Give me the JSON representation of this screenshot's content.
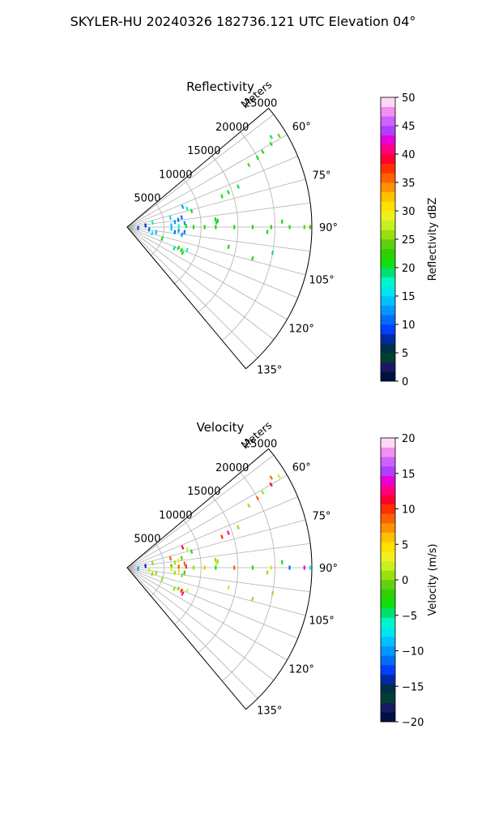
{
  "title": "SKYLER-HU  20240326  182736.121 UTC Elevation 04°",
  "chart_data": [
    {
      "type": "scatter",
      "projection": "polar-sector",
      "title": "Reflectivity",
      "radial_label": "Meters",
      "radial_ticks": [
        5000,
        10000,
        15000,
        20000,
        25000
      ],
      "radial_tick_labels": [
        "5000",
        "10000",
        "15000",
        "20000",
        "25000"
      ],
      "radial_range": [
        0,
        25000
      ],
      "azimuth_range": [
        50,
        140
      ],
      "azimuth_ticks": [
        60,
        75,
        90,
        105,
        120,
        135
      ],
      "azimuth_tick_labels": [
        "60°",
        "75°",
        "90°",
        "105°",
        "120°",
        "135°"
      ],
      "grid": true,
      "colorbar": {
        "label": "Reflectivity dBZ",
        "range": [
          0,
          50
        ],
        "ticks": [
          0,
          5,
          10,
          15,
          20,
          25,
          30,
          35,
          40,
          45,
          50
        ],
        "tick_labels": [
          "0",
          "5",
          "10",
          "15",
          "20",
          "25",
          "30",
          "35",
          "40",
          "45",
          "50"
        ],
        "colors": [
          "#001040",
          "#1a1a60",
          "#004030",
          "#00304a",
          "#002aa8",
          "#0040ff",
          "#006ef5",
          "#0098ff",
          "#00c0ff",
          "#00e5f0",
          "#00f5c8",
          "#00e070",
          "#10e010",
          "#30d000",
          "#60d010",
          "#98e010",
          "#c8f020",
          "#f0f020",
          "#ffe000",
          "#ffc000",
          "#ff9000",
          "#ff6000",
          "#ff3000",
          "#ff0030",
          "#ff0080",
          "#e800d8",
          "#b040ff",
          "#d060ff",
          "#f090f0",
          "#ffd8f8"
        ]
      },
      "points": [
        {
          "az": 90,
          "r": 9000,
          "v": 22
        },
        {
          "az": 90,
          "r": 10500,
          "v": 22
        },
        {
          "az": 90,
          "r": 12000,
          "v": 22
        },
        {
          "az": 90,
          "r": 14500,
          "v": 21
        },
        {
          "az": 90,
          "r": 17000,
          "v": 22
        },
        {
          "az": 90,
          "r": 19500,
          "v": 23
        },
        {
          "az": 90,
          "r": 22000,
          "v": 21
        },
        {
          "az": 90,
          "r": 24000,
          "v": 24
        },
        {
          "az": 90,
          "r": 24800,
          "v": 22
        },
        {
          "az": 89,
          "r": 8000,
          "v": 20
        },
        {
          "az": 89,
          "r": 7000,
          "v": 18
        },
        {
          "az": 88,
          "r": 6000,
          "v": 14
        },
        {
          "az": 84,
          "r": 6500,
          "v": 12
        },
        {
          "az": 82,
          "r": 7000,
          "v": 10
        },
        {
          "az": 80,
          "r": 7500,
          "v": 11
        },
        {
          "az": 86,
          "r": 7800,
          "v": 13
        },
        {
          "az": 94,
          "r": 7000,
          "v": 12
        },
        {
          "az": 96,
          "r": 6500,
          "v": 10
        },
        {
          "az": 98,
          "r": 7500,
          "v": 13
        },
        {
          "az": 95,
          "r": 7800,
          "v": 11
        },
        {
          "az": 92,
          "r": 6000,
          "v": 14
        },
        {
          "az": 85,
          "r": 12000,
          "v": 21
        },
        {
          "az": 86,
          "r": 12300,
          "v": 22
        },
        {
          "az": 87,
          "r": 12100,
          "v": 19
        },
        {
          "az": 72,
          "r": 13500,
          "v": 20
        },
        {
          "az": 71,
          "r": 14500,
          "v": 21
        },
        {
          "az": 70,
          "r": 16000,
          "v": 19
        },
        {
          "az": 63,
          "r": 18500,
          "v": 24
        },
        {
          "az": 62,
          "r": 20000,
          "v": 20
        },
        {
          "az": 61,
          "r": 21000,
          "v": 22
        },
        {
          "az": 60,
          "r": 22500,
          "v": 21
        },
        {
          "az": 59,
          "r": 24000,
          "v": 24
        },
        {
          "az": 58,
          "r": 23000,
          "v": 19
        },
        {
          "az": 70,
          "r": 8000,
          "v": 13
        },
        {
          "az": 73,
          "r": 8500,
          "v": 18
        },
        {
          "az": 76,
          "r": 9000,
          "v": 21
        },
        {
          "az": 78,
          "r": 6000,
          "v": 15
        },
        {
          "az": 112,
          "r": 7500,
          "v": 20
        },
        {
          "az": 113,
          "r": 8000,
          "v": 21
        },
        {
          "az": 114,
          "r": 7000,
          "v": 19
        },
        {
          "az": 115,
          "r": 8300,
          "v": 20
        },
        {
          "az": 111,
          "r": 8700,
          "v": 18
        },
        {
          "az": 100,
          "r": 4000,
          "v": 14
        },
        {
          "az": 104,
          "r": 3500,
          "v": 16
        },
        {
          "az": 96,
          "r": 3000,
          "v": 11
        },
        {
          "az": 108,
          "r": 5000,
          "v": 20
        },
        {
          "az": 100,
          "r": 20000,
          "v": 19
        },
        {
          "az": 104,
          "r": 17500,
          "v": 21
        },
        {
          "az": 101,
          "r": 14000,
          "v": 22
        },
        {
          "az": 92,
          "r": 19000,
          "v": 21
        },
        {
          "az": 88,
          "r": 21000,
          "v": 20
        },
        {
          "az": 85,
          "r": 2500,
          "v": 8
        },
        {
          "az": 80,
          "r": 3500,
          "v": 17
        },
        {
          "az": 95,
          "r": 1500,
          "v": 9
        }
      ]
    },
    {
      "type": "scatter",
      "projection": "polar-sector",
      "title": "Velocity",
      "radial_label": "Meters",
      "radial_ticks": [
        5000,
        10000,
        15000,
        20000,
        25000
      ],
      "radial_tick_labels": [
        "5000",
        "10000",
        "15000",
        "20000",
        "25000"
      ],
      "radial_range": [
        0,
        25000
      ],
      "azimuth_range": [
        50,
        140
      ],
      "azimuth_ticks": [
        60,
        75,
        90,
        105,
        120,
        135
      ],
      "azimuth_tick_labels": [
        "60°",
        "75°",
        "90°",
        "105°",
        "120°",
        "135°"
      ],
      "grid": true,
      "colorbar": {
        "label": "Velocity (m/s)",
        "range": [
          -20,
          20
        ],
        "ticks": [
          -20,
          -15,
          -10,
          -5,
          0,
          5,
          10,
          15,
          20
        ],
        "tick_labels": [
          "−20",
          "−15",
          "−10",
          "−5",
          "0",
          "5",
          "10",
          "15",
          "20"
        ],
        "colors": [
          "#001040",
          "#1a1a60",
          "#004030",
          "#00304a",
          "#002aa8",
          "#0040ff",
          "#006ef5",
          "#0098ff",
          "#00c0ff",
          "#00e5f0",
          "#00f5c8",
          "#00e070",
          "#10e010",
          "#30d000",
          "#60d010",
          "#98e010",
          "#c8f020",
          "#f0f020",
          "#ffe000",
          "#ffc000",
          "#ff9000",
          "#ff6000",
          "#ff3000",
          "#ff0030",
          "#ff0080",
          "#e800d8",
          "#b040ff",
          "#d060ff",
          "#f090f0",
          "#ffd8f8"
        ]
      },
      "points": [
        {
          "az": 90,
          "r": 9000,
          "v": 0
        },
        {
          "az": 90,
          "r": 10500,
          "v": 6
        },
        {
          "az": 90,
          "r": 12000,
          "v": -4
        },
        {
          "az": 90,
          "r": 14500,
          "v": 8
        },
        {
          "az": 90,
          "r": 17000,
          "v": -3
        },
        {
          "az": 90,
          "r": 19500,
          "v": 2
        },
        {
          "az": 90,
          "r": 22000,
          "v": -12
        },
        {
          "az": 90,
          "r": 24000,
          "v": 14
        },
        {
          "az": 90,
          "r": 24800,
          "v": -6
        },
        {
          "az": 89,
          "r": 8000,
          "v": 10
        },
        {
          "az": 89,
          "r": 7000,
          "v": 8
        },
        {
          "az": 88,
          "r": 6000,
          "v": -2
        },
        {
          "az": 84,
          "r": 6500,
          "v": 1
        },
        {
          "az": 82,
          "r": 7000,
          "v": 3
        },
        {
          "az": 80,
          "r": 7500,
          "v": -1
        },
        {
          "az": 86,
          "r": 7800,
          "v": 9
        },
        {
          "az": 94,
          "r": 7000,
          "v": 2
        },
        {
          "az": 96,
          "r": 6500,
          "v": 0
        },
        {
          "az": 98,
          "r": 7500,
          "v": 1
        },
        {
          "az": 95,
          "r": 7800,
          "v": -2
        },
        {
          "az": 92,
          "r": 6000,
          "v": 4
        },
        {
          "az": 85,
          "r": 12000,
          "v": 1
        },
        {
          "az": 86,
          "r": 12300,
          "v": 0
        },
        {
          "az": 87,
          "r": 12100,
          "v": 2
        },
        {
          "az": 72,
          "r": 13500,
          "v": 10
        },
        {
          "az": 71,
          "r": 14500,
          "v": 12
        },
        {
          "az": 70,
          "r": 16000,
          "v": 1
        },
        {
          "az": 63,
          "r": 18500,
          "v": 0
        },
        {
          "az": 62,
          "r": 20000,
          "v": 9
        },
        {
          "az": 61,
          "r": 21000,
          "v": 1
        },
        {
          "az": 60,
          "r": 22500,
          "v": 11
        },
        {
          "az": 59,
          "r": 24000,
          "v": 2
        },
        {
          "az": 58,
          "r": 23000,
          "v": 8
        },
        {
          "az": 70,
          "r": 8000,
          "v": 11
        },
        {
          "az": 73,
          "r": 8500,
          "v": 2
        },
        {
          "az": 76,
          "r": 9000,
          "v": -3
        },
        {
          "az": 78,
          "r": 6000,
          "v": 9
        },
        {
          "az": 112,
          "r": 7500,
          "v": 1
        },
        {
          "az": 113,
          "r": 8000,
          "v": 10
        },
        {
          "az": 114,
          "r": 7000,
          "v": 0
        },
        {
          "az": 115,
          "r": 8300,
          "v": 12
        },
        {
          "az": 111,
          "r": 8700,
          "v": 2
        },
        {
          "az": 100,
          "r": 4000,
          "v": 1
        },
        {
          "az": 104,
          "r": 3500,
          "v": 0
        },
        {
          "az": 96,
          "r": 3000,
          "v": 2
        },
        {
          "az": 108,
          "r": 5000,
          "v": 1
        },
        {
          "az": 100,
          "r": 20000,
          "v": 1
        },
        {
          "az": 104,
          "r": 17500,
          "v": 0
        },
        {
          "az": 101,
          "r": 14000,
          "v": 2
        },
        {
          "az": 92,
          "r": 19000,
          "v": 1
        },
        {
          "az": 88,
          "r": 21000,
          "v": -4
        },
        {
          "az": 85,
          "r": 2500,
          "v": -14
        },
        {
          "az": 80,
          "r": 3500,
          "v": 1
        },
        {
          "az": 95,
          "r": 1500,
          "v": -10
        }
      ]
    }
  ]
}
